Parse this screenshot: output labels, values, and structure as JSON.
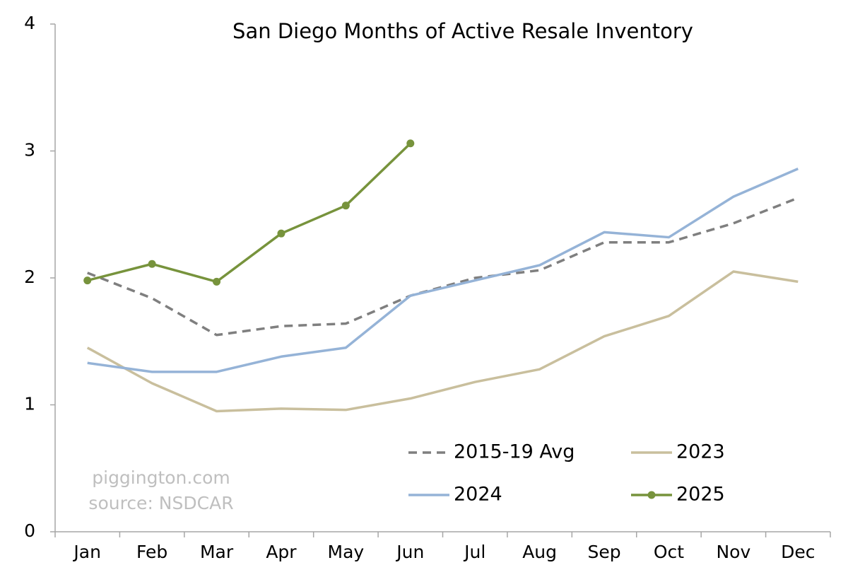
{
  "chart_data": {
    "type": "line",
    "title": "San Diego Months of Active Resale Inventory",
    "annotations": [
      "piggington.com",
      "source: NSDCAR"
    ],
    "categories": [
      "Jan",
      "Feb",
      "Mar",
      "Apr",
      "May",
      "Jun",
      "Jul",
      "Aug",
      "Sep",
      "Oct",
      "Nov",
      "Dec"
    ],
    "series": [
      {
        "name": "2015-19 Avg",
        "color": "#7f7f7f",
        "dashed": true,
        "markers": false,
        "values": [
          2.04,
          1.84,
          1.55,
          1.62,
          1.64,
          1.86,
          2.0,
          2.06,
          2.28,
          2.28,
          2.43,
          2.63
        ]
      },
      {
        "name": "2023",
        "color": "#c9bf9d",
        "dashed": false,
        "markers": false,
        "values": [
          1.45,
          1.17,
          0.95,
          0.97,
          0.96,
          1.05,
          1.18,
          1.28,
          1.54,
          1.7,
          2.05,
          1.97
        ]
      },
      {
        "name": "2024",
        "color": "#95b3d7",
        "dashed": false,
        "markers": false,
        "values": [
          1.33,
          1.26,
          1.26,
          1.38,
          1.45,
          1.86,
          1.98,
          2.1,
          2.36,
          2.32,
          2.64,
          2.86
        ]
      },
      {
        "name": "2025",
        "color": "#77933c",
        "dashed": false,
        "markers": true,
        "values": [
          1.98,
          2.11,
          1.97,
          2.35,
          2.57,
          3.06,
          null,
          null,
          null,
          null,
          null,
          null
        ]
      }
    ],
    "ylim": [
      0,
      4
    ],
    "yticks": [
      0,
      1,
      2,
      3,
      4
    ],
    "grid": false,
    "legend": "lower right"
  }
}
